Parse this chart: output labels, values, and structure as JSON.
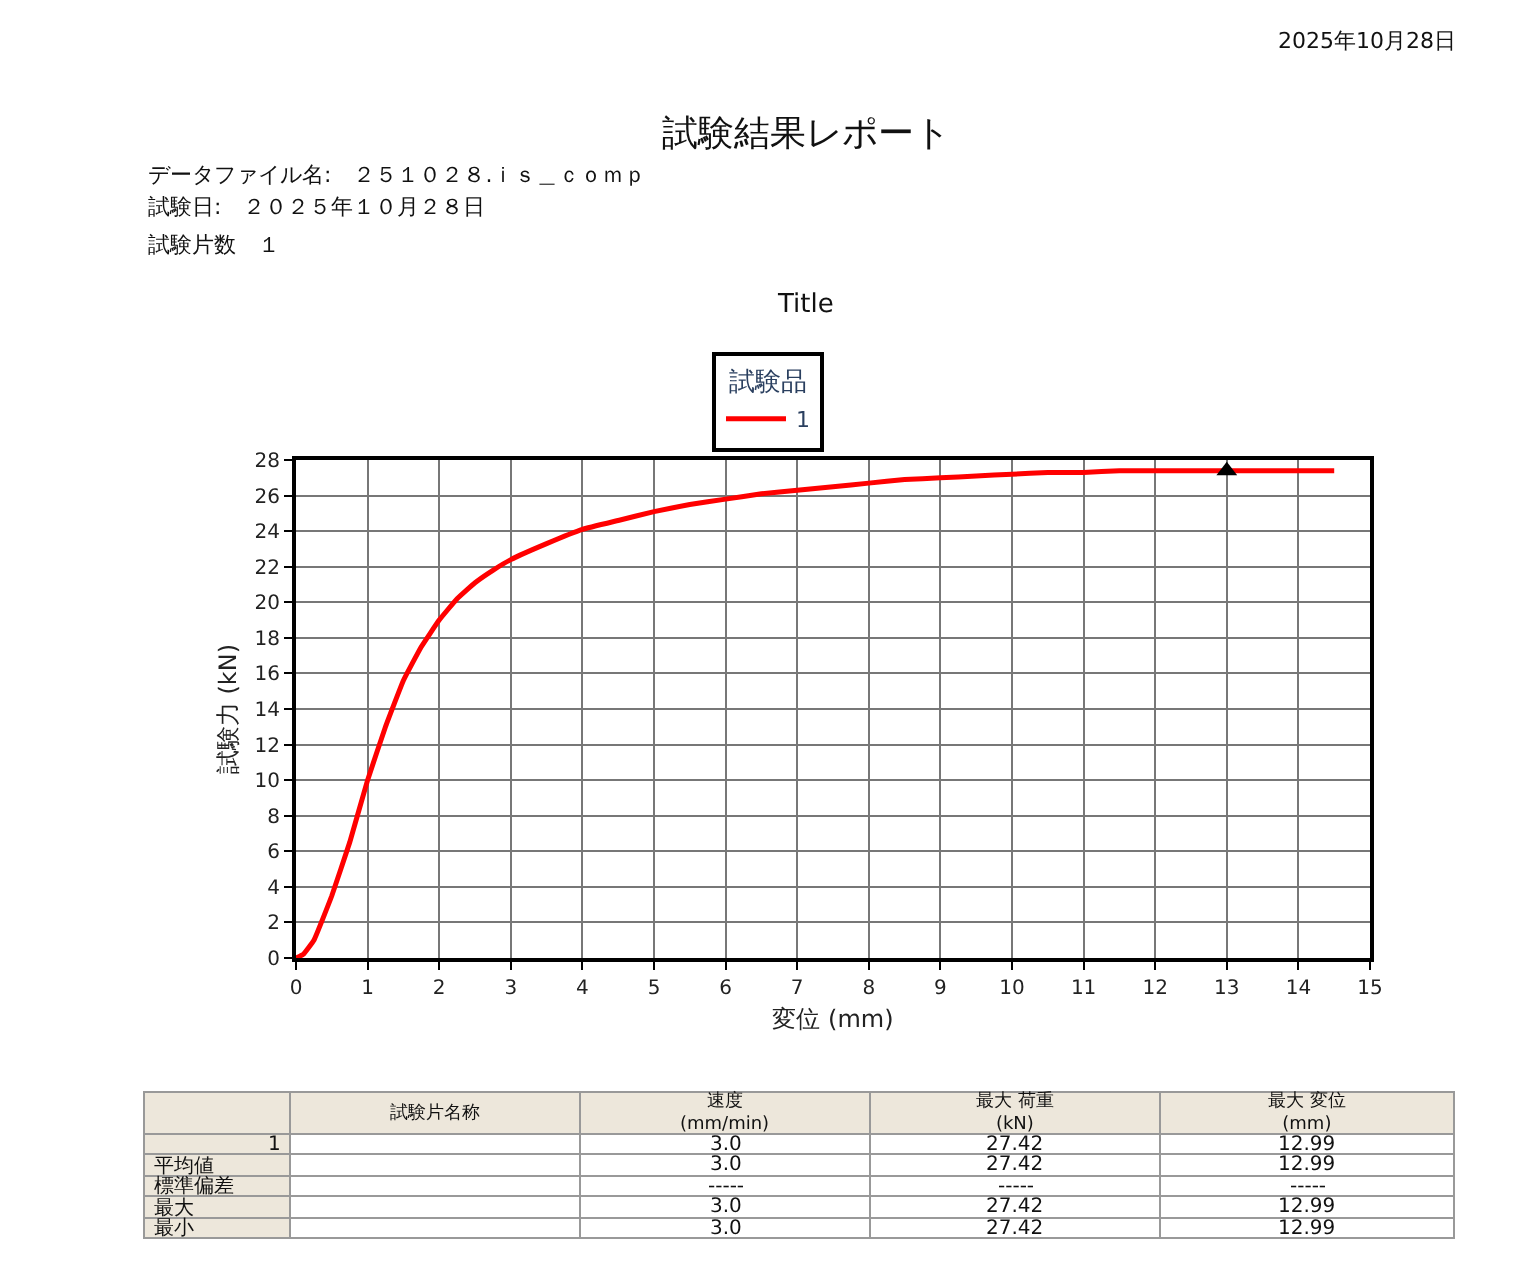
{
  "chart_data": {
    "type": "line",
    "title": "試験結果レポート",
    "subtitle": "Title",
    "xlabel": "変位 (mm)",
    "ylabel": "試験力 (kN)",
    "legend_title": "試験品",
    "legend": "top",
    "grid": true,
    "xlim": [
      0,
      15
    ],
    "xticks": [
      0,
      1,
      2,
      3,
      4,
      5,
      6,
      7,
      8,
      9,
      10,
      11,
      12,
      13,
      14,
      15
    ],
    "ylim": [
      0,
      28
    ],
    "yticks": [
      0,
      2,
      4,
      6,
      8,
      10,
      12,
      14,
      16,
      18,
      20,
      22,
      24,
      26,
      28
    ],
    "series": [
      {
        "name": "1",
        "color": "#ff0000",
        "marker": "none",
        "line_style": "solid",
        "x": [
          0,
          0.1,
          0.25,
          0.5,
          0.75,
          1,
          1.25,
          1.5,
          1.75,
          2,
          2.25,
          2.5,
          2.75,
          3,
          3.5,
          4,
          4.5,
          5,
          5.5,
          6,
          6.5,
          7,
          7.5,
          8,
          8.5,
          9,
          9.5,
          10,
          10.5,
          11,
          11.5,
          12,
          12.5,
          13,
          13.5,
          14,
          14.5
        ],
        "values": [
          0,
          0.2,
          1,
          3.5,
          6.5,
          10,
          13,
          15.6,
          17.5,
          19,
          20.2,
          21.1,
          21.8,
          22.4,
          23.3,
          24.1,
          24.6,
          25.1,
          25.5,
          25.8,
          26.1,
          26.3,
          26.5,
          26.7,
          26.9,
          27,
          27.1,
          27.2,
          27.3,
          27.3,
          27.4,
          27.4,
          27.4,
          27.4,
          27.4,
          27.4,
          27.4
        ]
      },
      {
        "type": "scatter",
        "color": "#000000",
        "marker": "triangle",
        "x": [
          13.0
        ],
        "values": [
          27.4
        ]
      }
    ],
    "annotations": [
      "2025年10月28日",
      "データファイル名:　２５１０２８.ｉｓ＿ｃｏｍｐ",
      "試験日:　２０２５年１０月２８日",
      "試験片数　１",
      "試験片名称",
      "速度\n(mm/min)",
      "最大 荷重\n(kN)",
      "最大 変位\n(mm)",
      "1",
      "3.0",
      "27.42",
      "12.99",
      "平均値",
      "3.0",
      "27.42",
      "12.99",
      "標準偏差",
      "-----",
      "-----",
      "-----",
      "最大",
      "3.0",
      "27.42",
      "12.99",
      "最小",
      "3.0",
      "27.42",
      "12.99"
    ]
  }
}
